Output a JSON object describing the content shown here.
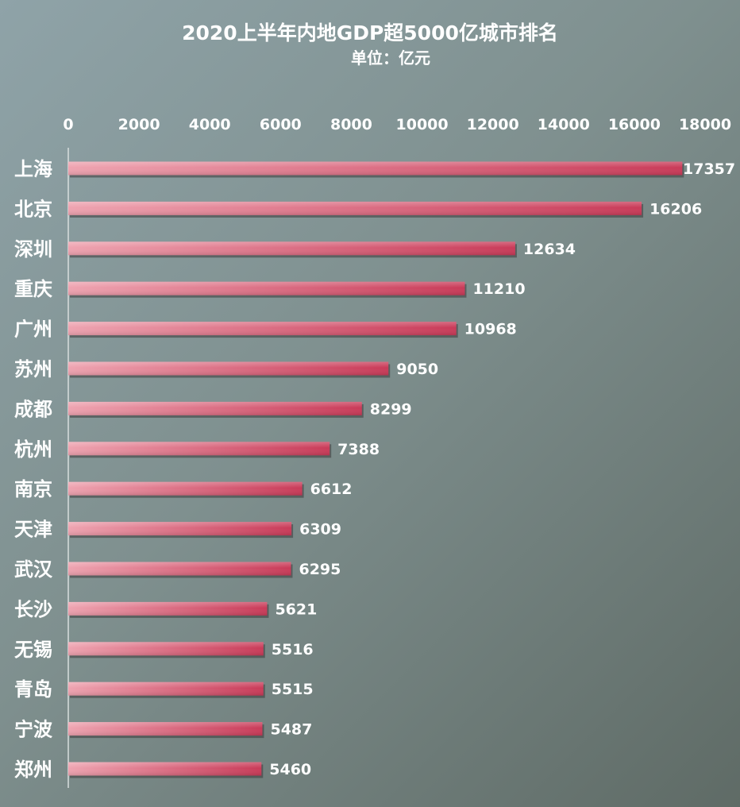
{
  "chart_data": {
    "type": "bar",
    "orientation": "horizontal",
    "title": "2020上半年内地GDP超5000亿城市排名",
    "subtitle": "单位：亿元",
    "categories": [
      "上海",
      "北京",
      "深圳",
      "重庆",
      "广州",
      "苏州",
      "成都",
      "杭州",
      "南京",
      "天津",
      "武汉",
      "长沙",
      "无锡",
      "青岛",
      "宁波",
      "郑州"
    ],
    "values": [
      17357,
      16206,
      12634,
      11210,
      10968,
      9050,
      8299,
      7388,
      6612,
      6309,
      6295,
      5621,
      5516,
      5515,
      5487,
      5460
    ],
    "xlim": [
      0,
      18000
    ],
    "xticks": [
      0,
      2000,
      4000,
      6000,
      8000,
      10000,
      12000,
      14000,
      16000,
      18000
    ],
    "axis_position": "top",
    "grid": false,
    "legend": "none",
    "colors": {
      "bar_start": "#eea3b0",
      "bar_end": "#c93a58",
      "bar_shadow": "#3a3a3a",
      "text": "#ffffff",
      "axis_line": "#d8dedd"
    }
  }
}
